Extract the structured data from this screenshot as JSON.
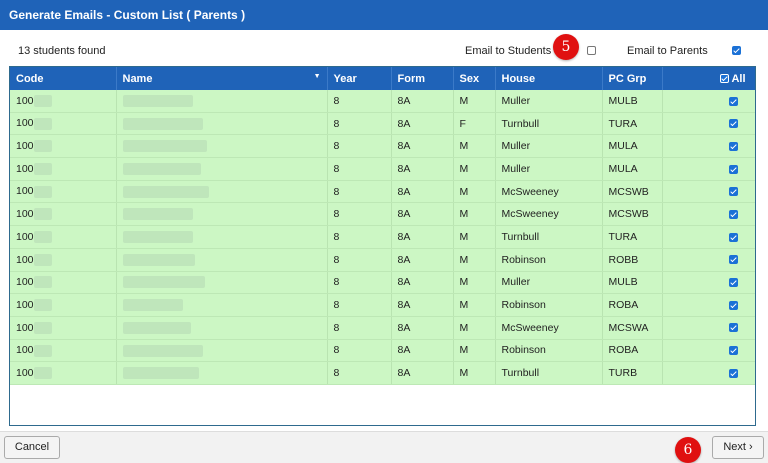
{
  "dialog": {
    "title": "Generate Emails - Custom List ( Parents )"
  },
  "summary": "13 students found",
  "options": {
    "email_students_label": "Email to Students",
    "email_students_checked": false,
    "email_parents_label": "Email to Parents",
    "email_parents_checked": true
  },
  "markers": {
    "m5": "5",
    "m6": "6"
  },
  "table": {
    "columns": [
      "Code",
      "Name",
      "Year",
      "Form",
      "Sex",
      "House",
      "PC Grp",
      "All"
    ],
    "sort_indicator": "▼",
    "rows": [
      {
        "code": "100",
        "year": "8",
        "form": "8A",
        "sex": "M",
        "house": "Muller",
        "pc_grp": "MULB",
        "checked": true
      },
      {
        "code": "100",
        "year": "8",
        "form": "8A",
        "sex": "F",
        "house": "Turnbull",
        "pc_grp": "TURA",
        "checked": true
      },
      {
        "code": "100",
        "year": "8",
        "form": "8A",
        "sex": "M",
        "house": "Muller",
        "pc_grp": "MULA",
        "checked": true
      },
      {
        "code": "100",
        "year": "8",
        "form": "8A",
        "sex": "M",
        "house": "Muller",
        "pc_grp": "MULA",
        "checked": true
      },
      {
        "code": "100",
        "year": "8",
        "form": "8A",
        "sex": "M",
        "house": "McSweeney",
        "pc_grp": "MCSWB",
        "checked": true
      },
      {
        "code": "100",
        "year": "8",
        "form": "8A",
        "sex": "M",
        "house": "McSweeney",
        "pc_grp": "MCSWB",
        "checked": true
      },
      {
        "code": "100",
        "year": "8",
        "form": "8A",
        "sex": "M",
        "house": "Turnbull",
        "pc_grp": "TURA",
        "checked": true
      },
      {
        "code": "100",
        "year": "8",
        "form": "8A",
        "sex": "M",
        "house": "Robinson",
        "pc_grp": "ROBB",
        "checked": true
      },
      {
        "code": "100",
        "year": "8",
        "form": "8A",
        "sex": "M",
        "house": "Muller",
        "pc_grp": "MULB",
        "checked": true
      },
      {
        "code": "100",
        "year": "8",
        "form": "8A",
        "sex": "M",
        "house": "Robinson",
        "pc_grp": "ROBA",
        "checked": true
      },
      {
        "code": "100",
        "year": "8",
        "form": "8A",
        "sex": "M",
        "house": "McSweeney",
        "pc_grp": "MCSWA",
        "checked": true
      },
      {
        "code": "100",
        "year": "8",
        "form": "8A",
        "sex": "M",
        "house": "Robinson",
        "pc_grp": "ROBA",
        "checked": true
      },
      {
        "code": "100",
        "year": "8",
        "form": "8A",
        "sex": "M",
        "house": "Turnbull",
        "pc_grp": "TURB",
        "checked": true
      }
    ]
  },
  "footer": {
    "cancel_label": "Cancel",
    "next_label": "Next",
    "next_arrow": "›"
  },
  "colors": {
    "header": "#1f63b8",
    "row_bg": "#ccf7c4",
    "marker": "#e01010"
  }
}
